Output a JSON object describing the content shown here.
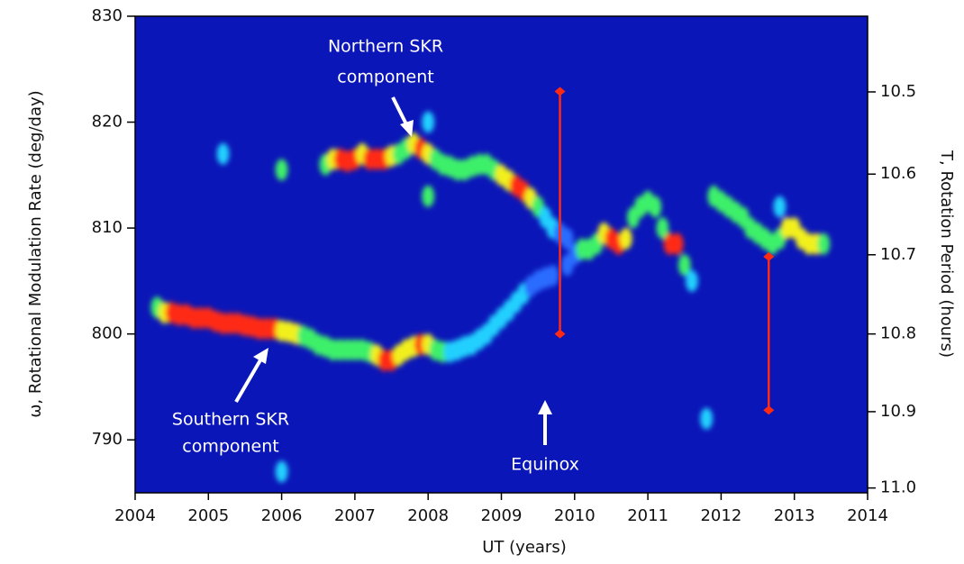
{
  "chart_data": {
    "type": "heatmap",
    "xlabel": "UT (years)",
    "ylabel": "ω, Rotational Modulation Rate (deg/day)",
    "y2label": "T, Rotation Period (hours)",
    "xlim": [
      2004,
      2014
    ],
    "xticks": [
      2004,
      2005,
      2006,
      2007,
      2008,
      2009,
      2010,
      2011,
      2012,
      2013,
      2014
    ],
    "ylim": [
      785,
      830
    ],
    "yticks": [
      790,
      800,
      810,
      820,
      830
    ],
    "y2lim": [
      10.4096,
      11.0064
    ],
    "y2scale": "reciprocal",
    "y2ticks": [
      10.5,
      10.6,
      10.7,
      10.8,
      10.9,
      {
        "value": 11,
        "label": "11.0"
      }
    ],
    "background": "#0b16b8",
    "colors": [
      "#2a6cff",
      "#20d0ff",
      "#3cf06a",
      "#f2f01e",
      "#ff2a12"
    ],
    "x": [
      2004.3,
      2004.4,
      2004.5,
      2004.6,
      2004.7,
      2004.8,
      2004.9,
      2005.0,
      2005.1,
      2005.2,
      2005.3,
      2005.4,
      2005.5,
      2005.6,
      2005.7,
      2005.8,
      2005.9,
      2006.0,
      2006.1,
      2006.2,
      2006.3,
      2006.4,
      2006.5,
      2006.6,
      2006.7,
      2006.8,
      2006.9,
      2007.0,
      2007.1,
      2007.2,
      2007.3,
      2007.4,
      2007.5,
      2007.6,
      2007.7,
      2007.8,
      2007.9,
      2008.0,
      2008.1,
      2008.2,
      2008.3,
      2008.4,
      2008.5,
      2008.6,
      2008.7,
      2008.8,
      2008.9,
      2009.0,
      2009.1,
      2009.2,
      2009.3,
      2009.4,
      2009.5,
      2009.6,
      2009.7,
      2009.9,
      2010.0,
      2006.6,
      2006.7,
      2006.8,
      2006.9,
      2007.0,
      2007.1,
      2007.2,
      2007.3,
      2007.4,
      2007.5,
      2007.6,
      2007.7,
      2007.8,
      2007.9,
      2008.0,
      2008.1,
      2008.2,
      2008.3,
      2008.4,
      2008.5,
      2008.6,
      2008.7,
      2008.8,
      2008.9,
      2009.0,
      2009.1,
      2009.2,
      2009.3,
      2009.4,
      2009.5,
      2009.6,
      2009.7,
      2009.8,
      2009.9,
      2010.1,
      2010.2,
      2010.3,
      2010.4,
      2010.5,
      2010.6,
      2010.7,
      2010.8,
      2010.9,
      2011.0,
      2011.1,
      2011.2,
      2011.3,
      2011.4,
      2011.5,
      2011.6,
      2011.9,
      2012.0,
      2012.1,
      2012.2,
      2012.3,
      2012.4,
      2012.5,
      2012.6,
      2012.7,
      2012.8,
      2012.9,
      2013.0,
      2013.1,
      2013.2,
      2013.3,
      2013.4,
      2005.2,
      2006.0,
      2008.0,
      2012.8,
      2008.0,
      2011.8,
      2006.0
    ],
    "y": [
      802.5,
      802,
      802,
      801.8,
      801.8,
      801.5,
      801.5,
      801.5,
      801.2,
      801,
      801,
      801,
      800.8,
      800.7,
      800.5,
      800.5,
      800.5,
      800.3,
      800.2,
      800,
      799.8,
      799.5,
      799,
      798.8,
      798.5,
      798.5,
      798.5,
      798.5,
      798.5,
      798.3,
      798,
      797.5,
      797.5,
      798,
      798.5,
      798.8,
      799,
      799,
      798.5,
      798.3,
      798.3,
      798.5,
      798.8,
      799,
      799.5,
      800,
      800.8,
      801.5,
      802.2,
      803,
      803.8,
      804.5,
      805,
      805.3,
      805.5,
      806.5,
      807.5,
      816,
      816.5,
      816.5,
      816.3,
      816.5,
      817,
      816.5,
      816.5,
      816.5,
      816.8,
      817,
      817.5,
      818,
      817.5,
      817,
      816.5,
      816,
      815.8,
      815.5,
      815.5,
      815.8,
      816,
      816,
      815.5,
      815,
      814.5,
      814,
      813.5,
      812.8,
      812,
      811,
      810,
      809.5,
      809,
      808,
      808,
      808.5,
      809.5,
      809,
      808.5,
      809,
      811,
      812,
      812.5,
      812,
      810,
      808.5,
      808.5,
      806.5,
      805,
      813,
      812.5,
      812,
      811.5,
      811,
      810,
      809.5,
      809,
      808.5,
      809,
      810,
      810,
      809,
      808.5,
      808.5,
      808.5,
      817,
      815.5,
      813,
      812,
      820,
      792,
      787
    ],
    "z": [
      3,
      4,
      5,
      5,
      5,
      5,
      5,
      5,
      5,
      5,
      5,
      5,
      5,
      5,
      5,
      5,
      5,
      4,
      4,
      4,
      3,
      3,
      3,
      3,
      3,
      3,
      3,
      3,
      3,
      3,
      4,
      5,
      5,
      4,
      4,
      4,
      5,
      4,
      3,
      3,
      2,
      2,
      2,
      2,
      2,
      2,
      2,
      2,
      2,
      2,
      2,
      1,
      1,
      1,
      1,
      1,
      1,
      3,
      4,
      5,
      5,
      5,
      4,
      5,
      5,
      5,
      4,
      3,
      3,
      4,
      5,
      4,
      3,
      3,
      3,
      3,
      3,
      3,
      3,
      3,
      3,
      4,
      4,
      5,
      5,
      4,
      3,
      2,
      2,
      1,
      1,
      3,
      3,
      3,
      4,
      5,
      5,
      4,
      3,
      3,
      3,
      3,
      3,
      5,
      5,
      3,
      2,
      3,
      3,
      3,
      3,
      3,
      3,
      3,
      3,
      3,
      3,
      4,
      4,
      4,
      4,
      4,
      3,
      2,
      3,
      3,
      2,
      2,
      2,
      2
    ],
    "marker_color": "#ff2a12",
    "markers": [
      {
        "x": 2009.8,
        "y": [
          800,
          822.9
        ]
      },
      {
        "x": 2012.65,
        "y": [
          792.8,
          807.3
        ]
      }
    ],
    "annotations": [
      [
        "Northern SKR",
        "component"
      ],
      [
        "Southern SKR",
        "component"
      ],
      [
        "Equinox"
      ]
    ]
  }
}
